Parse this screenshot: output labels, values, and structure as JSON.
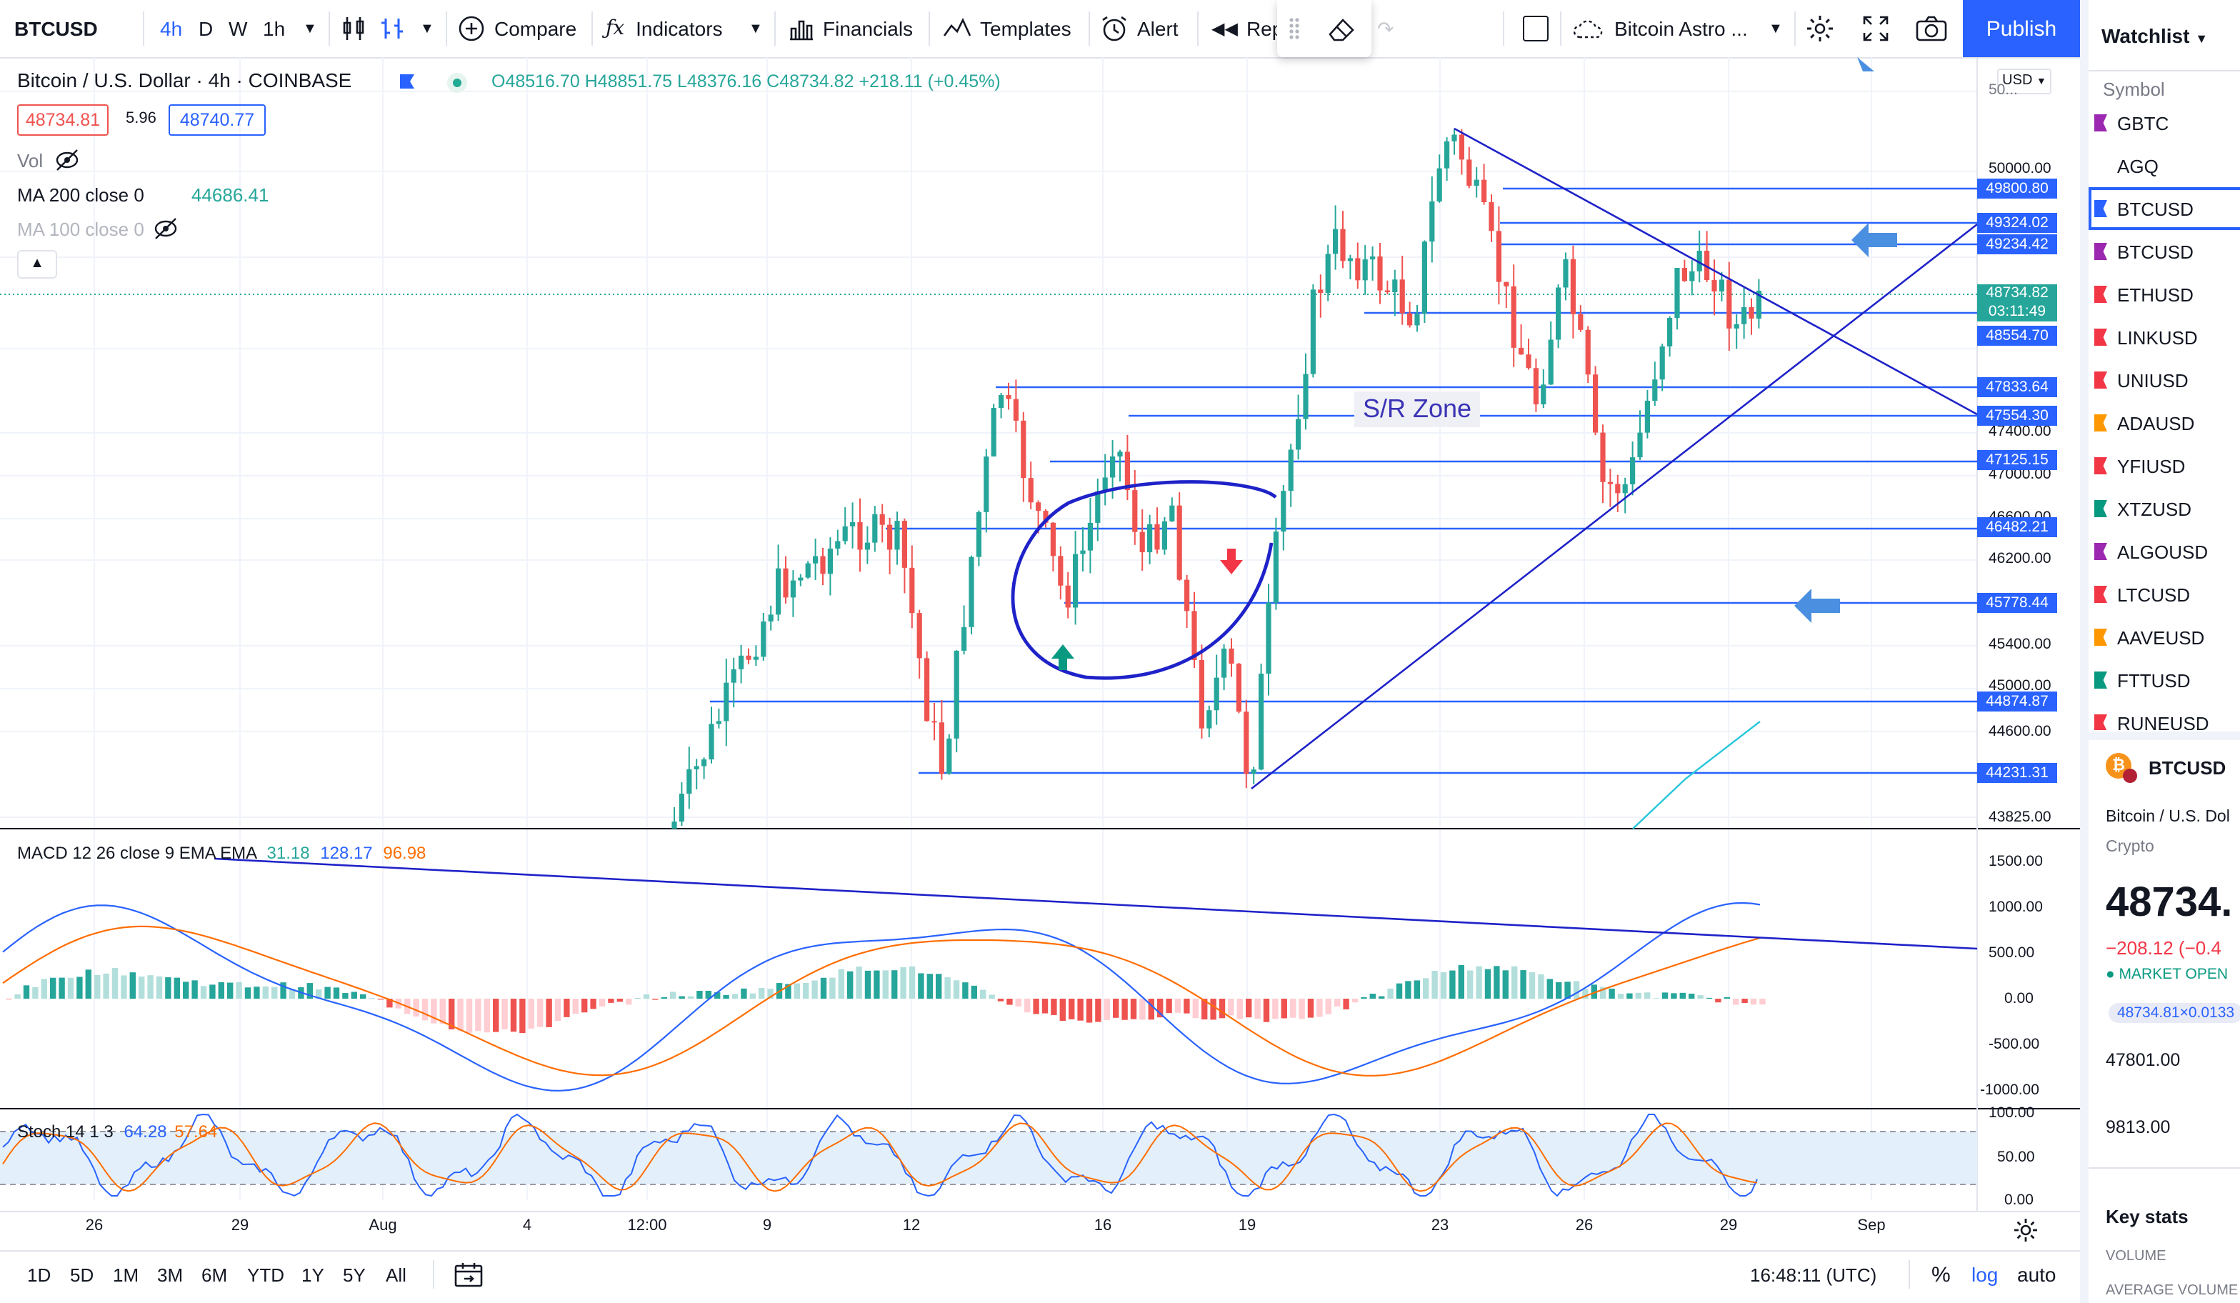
{
  "toolbar": {
    "symbol": "BTCUSD",
    "intervals": [
      "4h",
      "D",
      "W",
      "1h"
    ],
    "compare": "Compare",
    "indicators": "Indicators",
    "financials": "Financials",
    "templates": "Templates",
    "alert": "Alert",
    "replay": "Rep",
    "layout_name": "Bitcoin Astro ...",
    "publish": "Publish"
  },
  "legend": {
    "title": "Bitcoin / U.S. Dollar · 4h · COINBASE",
    "open": "O48516.70",
    "high": "H48851.75",
    "low": "L48376.16",
    "close": "C48734.82",
    "change": "+218.11 (+0.45%)",
    "bid": "48734.81",
    "spread": "5.96",
    "ask": "48740.77",
    "vol_label": "Vol",
    "ma200_label": "MA 200 close 0",
    "ma200_value": "44686.41",
    "ma100_label": "MA 100 close 0",
    "macd_label": "MACD 12 26 close 9 EMA EMA",
    "macd_hist": "31.18",
    "macd_line": "128.17",
    "macd_signal": "96.98",
    "stoch_label": "Stoch 14 1 3",
    "stoch_k": "64.28",
    "stoch_d": "57.64"
  },
  "annotation": "S/R Zone",
  "currency": "USD",
  "price_scale": {
    "ticks": [
      "50000.00",
      "47400.00",
      "47000.00",
      "46600.00",
      "46200.00",
      "45400.00",
      "45000.00",
      "44600.00",
      "43825.00"
    ],
    "partial_top": "50...",
    "levels": [
      "49800.80",
      "49324.02",
      "49234.42",
      "48554.70",
      "47833.64",
      "47554.30",
      "47125.15",
      "46482.21",
      "45778.44",
      "44874.87",
      "44231.31"
    ],
    "last_price": "48734.82",
    "countdown": "03:11:49",
    "macd_ticks": [
      "1500.00",
      "1000.00",
      "500.00",
      "0.00",
      "-500.00",
      "-1000.00"
    ],
    "stoch_ticks": [
      "100.00",
      "50.00",
      "0.00"
    ]
  },
  "time_axis": [
    "26",
    "29",
    "Aug",
    "4",
    "12:00",
    "9",
    "12",
    "16",
    "19",
    "23",
    "26",
    "29",
    "Sep"
  ],
  "bottom_bar": {
    "ranges": [
      "1D",
      "5D",
      "1M",
      "3M",
      "6M",
      "YTD",
      "1Y",
      "5Y",
      "All"
    ],
    "clock": "16:48:11 (UTC)",
    "percent": "%",
    "log": "log",
    "auto": "auto"
  },
  "watchlist": {
    "title": "Watchlist",
    "header": "Symbol",
    "items": [
      {
        "symbol": "GBTC",
        "color": "#9c27b0"
      },
      {
        "symbol": "AGQ",
        "color": "#ffffff"
      },
      {
        "symbol": "BTCUSD",
        "color": "#2962ff"
      },
      {
        "symbol": "BTCUSD",
        "color": "#9c27b0"
      },
      {
        "symbol": "ETHUSD",
        "color": "#f23645"
      },
      {
        "symbol": "LINKUSD",
        "color": "#f23645"
      },
      {
        "symbol": "UNIUSD",
        "color": "#f23645"
      },
      {
        "symbol": "ADAUSD",
        "color": "#ff9800"
      },
      {
        "symbol": "YFIUSD",
        "color": "#f23645"
      },
      {
        "symbol": "XTZUSD",
        "color": "#089981"
      },
      {
        "symbol": "ALGOUSD",
        "color": "#9c27b0"
      },
      {
        "symbol": "LTCUSD",
        "color": "#f23645"
      },
      {
        "symbol": "AAVEUSD",
        "color": "#ff9800"
      },
      {
        "symbol": "FTTUSD",
        "color": "#089981"
      },
      {
        "symbol": "RUNEUSD",
        "color": "#f23645"
      }
    ],
    "detail_symbol": "BTCUSD",
    "detail_name": "Bitcoin / U.S. Dol",
    "detail_type": "Crypto",
    "detail_price": "48734.",
    "detail_change": "−208.12 (−0.4",
    "detail_status": "MARKET OPEN",
    "detail_bidask": "48734.81×0.0133",
    "detail_low": "47801.00",
    "detail_vol": "9813.00",
    "key_stats": "Key stats",
    "volume": "VOLUME",
    "avg_volume": "AVERAGE VOLUME"
  },
  "colors": {
    "up": "#26a69a",
    "down": "#ef5350",
    "accent": "#2962ff",
    "drawing": "#1e22c8"
  }
}
